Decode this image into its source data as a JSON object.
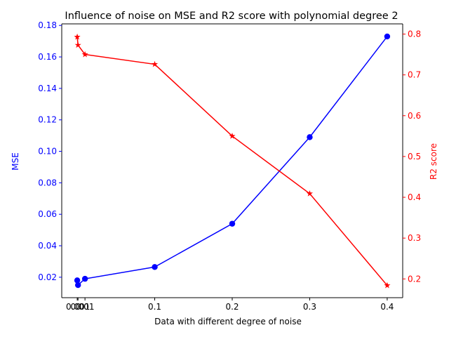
{
  "chart_data": {
    "type": "line",
    "title": "Influence of noise on MSE and R2 score with polynomial degree 2",
    "xlabel": "Data with different degree of noise",
    "ylabel_left": "MSE",
    "ylabel_right": "R2 score",
    "x": [
      0.0,
      0.001,
      0.01,
      0.1,
      0.2,
      0.3,
      0.4
    ],
    "xticks": [
      0.0,
      0.001,
      0.01,
      0.1,
      0.2,
      0.3,
      0.4
    ],
    "xtick_labels": [
      "0.0",
      "0.001",
      "0.01",
      "0.1",
      "0.2",
      "0.3",
      "0.4"
    ],
    "xlim": [
      -0.02,
      0.42
    ],
    "ylim_left": [
      0.007,
      0.181
    ],
    "yticks_left": [
      0.02,
      0.04,
      0.06,
      0.08,
      0.1,
      0.12,
      0.14,
      0.16,
      0.18
    ],
    "ytick_labels_left": [
      "0.02",
      "0.04",
      "0.06",
      "0.08",
      "0.10",
      "0.12",
      "0.14",
      "0.16",
      "0.18"
    ],
    "ylim_right": [
      0.154,
      0.825
    ],
    "yticks_right": [
      0.2,
      0.3,
      0.4,
      0.5,
      0.6,
      0.7,
      0.8
    ],
    "ytick_labels_right": [
      "0.2",
      "0.3",
      "0.4",
      "0.5",
      "0.6",
      "0.7",
      "0.8"
    ],
    "grid": false,
    "series": [
      {
        "axis": "left",
        "color": "#0000ff",
        "marker": "circle",
        "values": [
          0.018,
          0.015,
          0.019,
          0.0265,
          0.054,
          0.109,
          0.173
        ]
      },
      {
        "axis": "right",
        "color": "#ff0000",
        "marker": "star",
        "values": [
          0.793,
          0.773,
          0.75,
          0.726,
          0.55,
          0.409,
          0.184
        ]
      }
    ]
  }
}
